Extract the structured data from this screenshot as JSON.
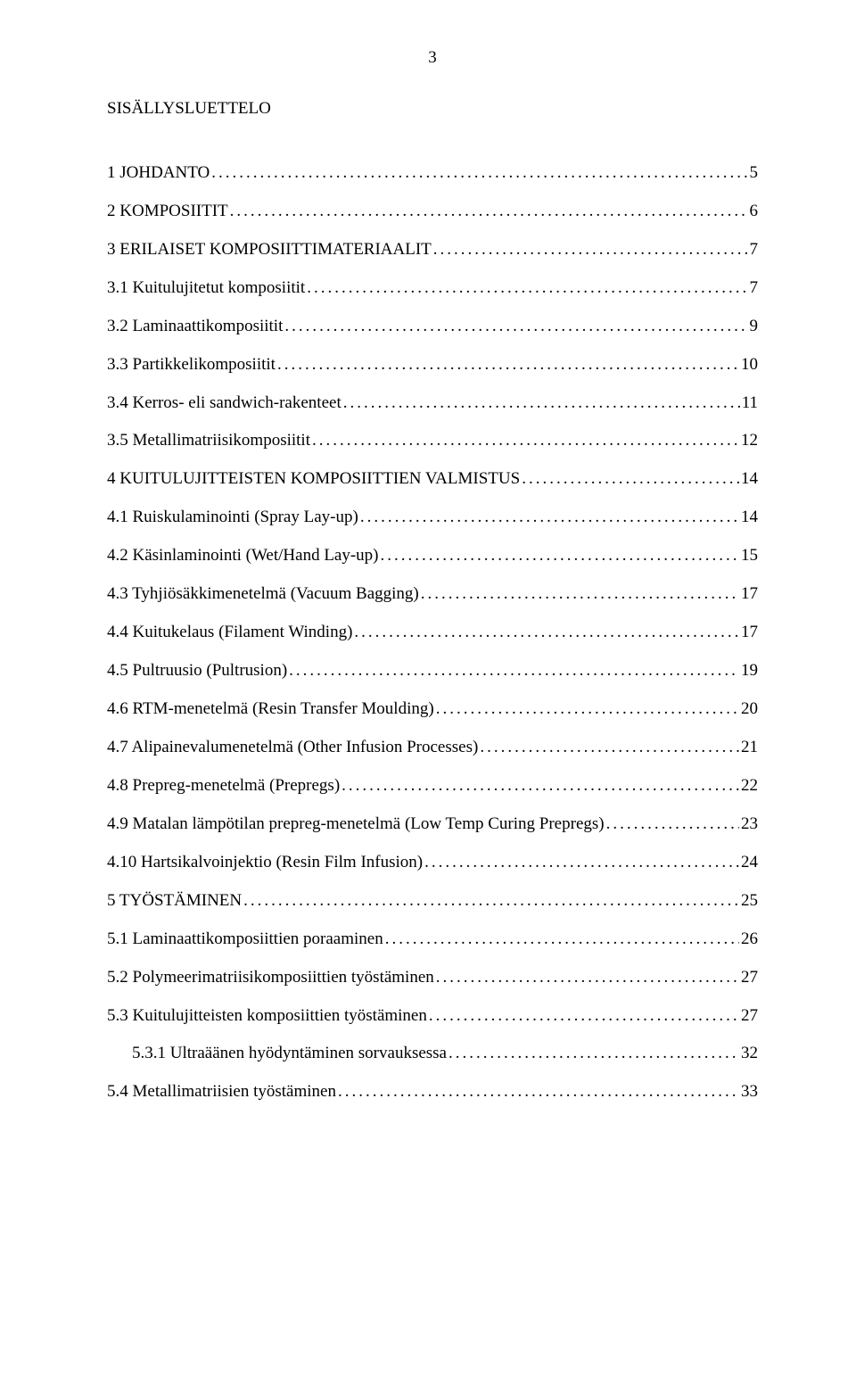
{
  "page_number": "3",
  "title": "SISÄLLYSLUETTELO",
  "entries": [
    {
      "level": 0,
      "label": "1 JOHDANTO",
      "page": "5"
    },
    {
      "level": 0,
      "label": "2 KOMPOSIITIT",
      "page": "6"
    },
    {
      "level": 0,
      "label": "3 ERILAISET KOMPOSIITTIMATERIAALIT",
      "page": "7"
    },
    {
      "level": 1,
      "label": "3.1 Kuitulujitetut komposiitit",
      "page": "7"
    },
    {
      "level": 1,
      "label": "3.2 Laminaattikomposiitit",
      "page": "9"
    },
    {
      "level": 1,
      "label": "3.3 Partikkelikomposiitit",
      "page": "10"
    },
    {
      "level": 1,
      "label": "3.4 Kerros- eli sandwich-rakenteet",
      "page": "11"
    },
    {
      "level": 1,
      "label": "3.5 Metallimatriisikomposiitit",
      "page": "12"
    },
    {
      "level": 0,
      "label": "4 KUITULUJITTEISTEN KOMPOSIITTIEN VALMISTUS",
      "page": "14"
    },
    {
      "level": 1,
      "label": "4.1 Ruiskulaminointi (Spray Lay-up)",
      "page": "14"
    },
    {
      "level": 1,
      "label": "4.2 Käsinlaminointi (Wet/Hand Lay-up)",
      "page": "15"
    },
    {
      "level": 1,
      "label": "4.3 Tyhjiösäkkimenetelmä (Vacuum Bagging)",
      "page": "17"
    },
    {
      "level": 1,
      "label": "4.4 Kuitukelaus (Filament Winding)",
      "page": "17"
    },
    {
      "level": 1,
      "label": "4.5 Pultruusio (Pultrusion)",
      "page": "19"
    },
    {
      "level": 1,
      "label": "4.6 RTM-menetelmä (Resin Transfer Moulding)",
      "page": "20"
    },
    {
      "level": 1,
      "label": "4.7 Alipainevalumenetelmä (Other Infusion Processes)",
      "page": "21"
    },
    {
      "level": 1,
      "label": "4.8 Prepreg-menetelmä (Prepregs)",
      "page": "22"
    },
    {
      "level": 1,
      "label": "4.9 Matalan lämpötilan prepreg-menetelmä (Low Temp Curing Prepregs)",
      "page": "23"
    },
    {
      "level": 1,
      "label": "4.10 Hartsikalvoinjektio (Resin Film Infusion)",
      "page": "24"
    },
    {
      "level": 0,
      "label": "5 TYÖSTÄMINEN",
      "page": "25"
    },
    {
      "level": 1,
      "label": "5.1 Laminaattikomposiittien poraaminen",
      "page": "26"
    },
    {
      "level": 1,
      "label": "5.2 Polymeerimatriisikomposiittien työstäminen",
      "page": "27"
    },
    {
      "level": 1,
      "label": "5.3 Kuitulujitteisten komposiittien työstäminen",
      "page": "27"
    },
    {
      "level": 2,
      "label": "5.3.1 Ultraäänen hyödyntäminen sorvauksessa",
      "page": "32"
    },
    {
      "level": 1,
      "label": "5.4 Metallimatriisien työstäminen",
      "page": "33"
    }
  ],
  "colors": {
    "background": "#ffffff",
    "text": "#000000"
  },
  "typography": {
    "font_family": "Times New Roman",
    "font_size_pt": 14,
    "line_spacing": 1.55
  }
}
